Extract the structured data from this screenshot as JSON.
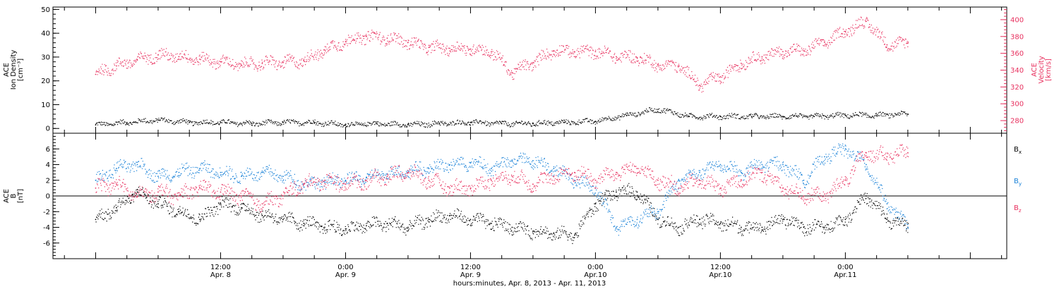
{
  "colors": {
    "black": "#000000",
    "pink": "#e8315f",
    "blue": "#1a82d8"
  },
  "chart_data": [
    {
      "type": "scatter",
      "panel": "plasma",
      "ylabel_lines": [
        "ACE",
        "Ion Density",
        "[cm⁻³]"
      ],
      "ylim": [
        -2,
        51
      ],
      "yticks": [
        0,
        10,
        20,
        30,
        40,
        50
      ],
      "y2label_lines": [
        "ACE",
        "Velocity",
        "[km/s]"
      ],
      "y2lim": [
        265,
        415
      ],
      "y2ticks": [
        280,
        300,
        320,
        340,
        360,
        380,
        400
      ],
      "series": [
        {
          "name": "",
          "color": "#000000",
          "axis": "left",
          "x": [
            0,
            3,
            6,
            9,
            12,
            15,
            18,
            21,
            24,
            27,
            30,
            33,
            36,
            39,
            42,
            45,
            48,
            51,
            54,
            57,
            60,
            63,
            66,
            69,
            72,
            75,
            78
          ],
          "y": [
            1.5,
            2.5,
            3.5,
            2.5,
            2.5,
            2,
            2.5,
            2.5,
            1.5,
            2,
            1.5,
            2,
            2.5,
            2,
            2,
            2.5,
            3,
            5.5,
            8,
            5,
            5,
            5,
            5,
            5,
            5.5,
            5.5,
            6
          ]
        },
        {
          "name": "",
          "color": "#e8315f",
          "axis": "right",
          "x": [
            0,
            2,
            4,
            6,
            8,
            10,
            12,
            14,
            16,
            18,
            20,
            22,
            24,
            26,
            28,
            30,
            32,
            34,
            36,
            38,
            40,
            42,
            44,
            46,
            48,
            50,
            52,
            54,
            56,
            58,
            60,
            62,
            64,
            66,
            68,
            70,
            72,
            74,
            76,
            78
          ],
          "y": [
            335,
            345,
            352,
            358,
            356,
            353,
            350,
            346,
            348,
            349,
            351,
            364,
            374,
            380,
            378,
            373,
            367,
            366,
            365,
            362,
            337,
            349,
            363,
            362,
            362,
            356,
            355,
            346,
            345,
            322,
            332,
            348,
            356,
            362,
            363,
            373,
            386,
            398,
            370,
            372
          ]
        }
      ]
    },
    {
      "type": "scatter",
      "panel": "magnetic-field",
      "ylabel_lines": [
        "ACE",
        "B",
        "[nT]"
      ],
      "ylim": [
        -8,
        8
      ],
      "yticks": [
        -6,
        -4,
        -2,
        0,
        2,
        4,
        6
      ],
      "zero_line": true,
      "legend": [
        {
          "label": "B",
          "sub": "x",
          "color": "#000000"
        },
        {
          "label": "B",
          "sub": "y",
          "color": "#1a82d8"
        },
        {
          "label": "B",
          "sub": "z",
          "color": "#e8315f"
        }
      ],
      "series": [
        {
          "name": "Bx",
          "color": "#000000",
          "x": [
            0,
            2,
            4,
            6,
            8,
            10,
            12,
            14,
            16,
            18,
            20,
            22,
            24,
            26,
            28,
            30,
            32,
            34,
            36,
            38,
            40,
            42,
            44,
            46,
            48,
            50,
            52,
            54,
            56,
            58,
            60,
            62,
            64,
            66,
            68,
            70,
            72,
            74,
            76,
            78
          ],
          "y": [
            -3,
            -1.5,
            0.5,
            -1,
            -2,
            -3,
            -1,
            -1.5,
            -2.5,
            -3,
            -3.5,
            -4,
            -4.2,
            -3.8,
            -3.5,
            -4,
            -3,
            -2.5,
            -3,
            -3.5,
            -4,
            -4.5,
            -4.8,
            -5,
            -1,
            0.5,
            0.5,
            -3,
            -4,
            -3,
            -3.5,
            -4,
            -4,
            -3,
            -4,
            -4,
            -3,
            0,
            -3,
            -4
          ]
        },
        {
          "name": "By",
          "color": "#1a82d8",
          "x": [
            0,
            2,
            4,
            6,
            8,
            10,
            12,
            14,
            16,
            18,
            20,
            22,
            24,
            26,
            28,
            30,
            32,
            34,
            36,
            38,
            40,
            42,
            44,
            46,
            48,
            50,
            52,
            54,
            56,
            58,
            60,
            62,
            64,
            66,
            68,
            70,
            72,
            74,
            76,
            78
          ],
          "y": [
            2,
            3.5,
            4,
            2.5,
            3,
            3.5,
            3,
            2.5,
            3,
            2.5,
            1.5,
            1.8,
            2,
            2.3,
            2.8,
            3.2,
            3.5,
            4,
            4.2,
            3.5,
            4.5,
            4.5,
            3.5,
            2,
            1,
            -4,
            -3,
            -2,
            2,
            3,
            4,
            3,
            4,
            4,
            2,
            5,
            6,
            4,
            -1,
            -4
          ]
        },
        {
          "name": "Bz",
          "color": "#e8315f",
          "x": [
            0,
            2,
            4,
            6,
            8,
            10,
            12,
            14,
            16,
            18,
            20,
            22,
            24,
            26,
            28,
            30,
            32,
            34,
            36,
            38,
            40,
            42,
            44,
            46,
            48,
            50,
            52,
            54,
            56,
            58,
            60,
            62,
            64,
            66,
            68,
            70,
            72,
            74,
            76,
            78
          ],
          "y": [
            1,
            1.5,
            0,
            0.5,
            0,
            1,
            0.5,
            0,
            -1,
            0,
            1.5,
            2,
            1.5,
            2,
            2.5,
            3,
            2,
            1,
            1,
            2,
            2.5,
            1.5,
            2.5,
            3,
            2,
            3,
            3.5,
            2,
            1,
            2,
            1,
            2,
            3,
            1,
            0,
            0,
            2,
            5.5,
            5,
            5.5
          ]
        }
      ]
    }
  ],
  "x_axis": {
    "xlim": [
      -4.1,
      87.5
    ],
    "major_ticks": [
      {
        "x": 12,
        "time": "12:00",
        "date": "Apr. 8"
      },
      {
        "x": 24,
        "time": "0:00",
        "date": "Apr. 9"
      },
      {
        "x": 36,
        "time": "12:00",
        "date": "Apr. 9"
      },
      {
        "x": 48,
        "time": "0:00",
        "date": "Apr.10"
      },
      {
        "x": 60,
        "time": "12:00",
        "date": "Apr.10"
      },
      {
        "x": 72,
        "time": "0:00",
        "date": "Apr.11"
      }
    ],
    "title": "hours:minutes, Apr.  8, 2013 - Apr. 11, 2013"
  }
}
